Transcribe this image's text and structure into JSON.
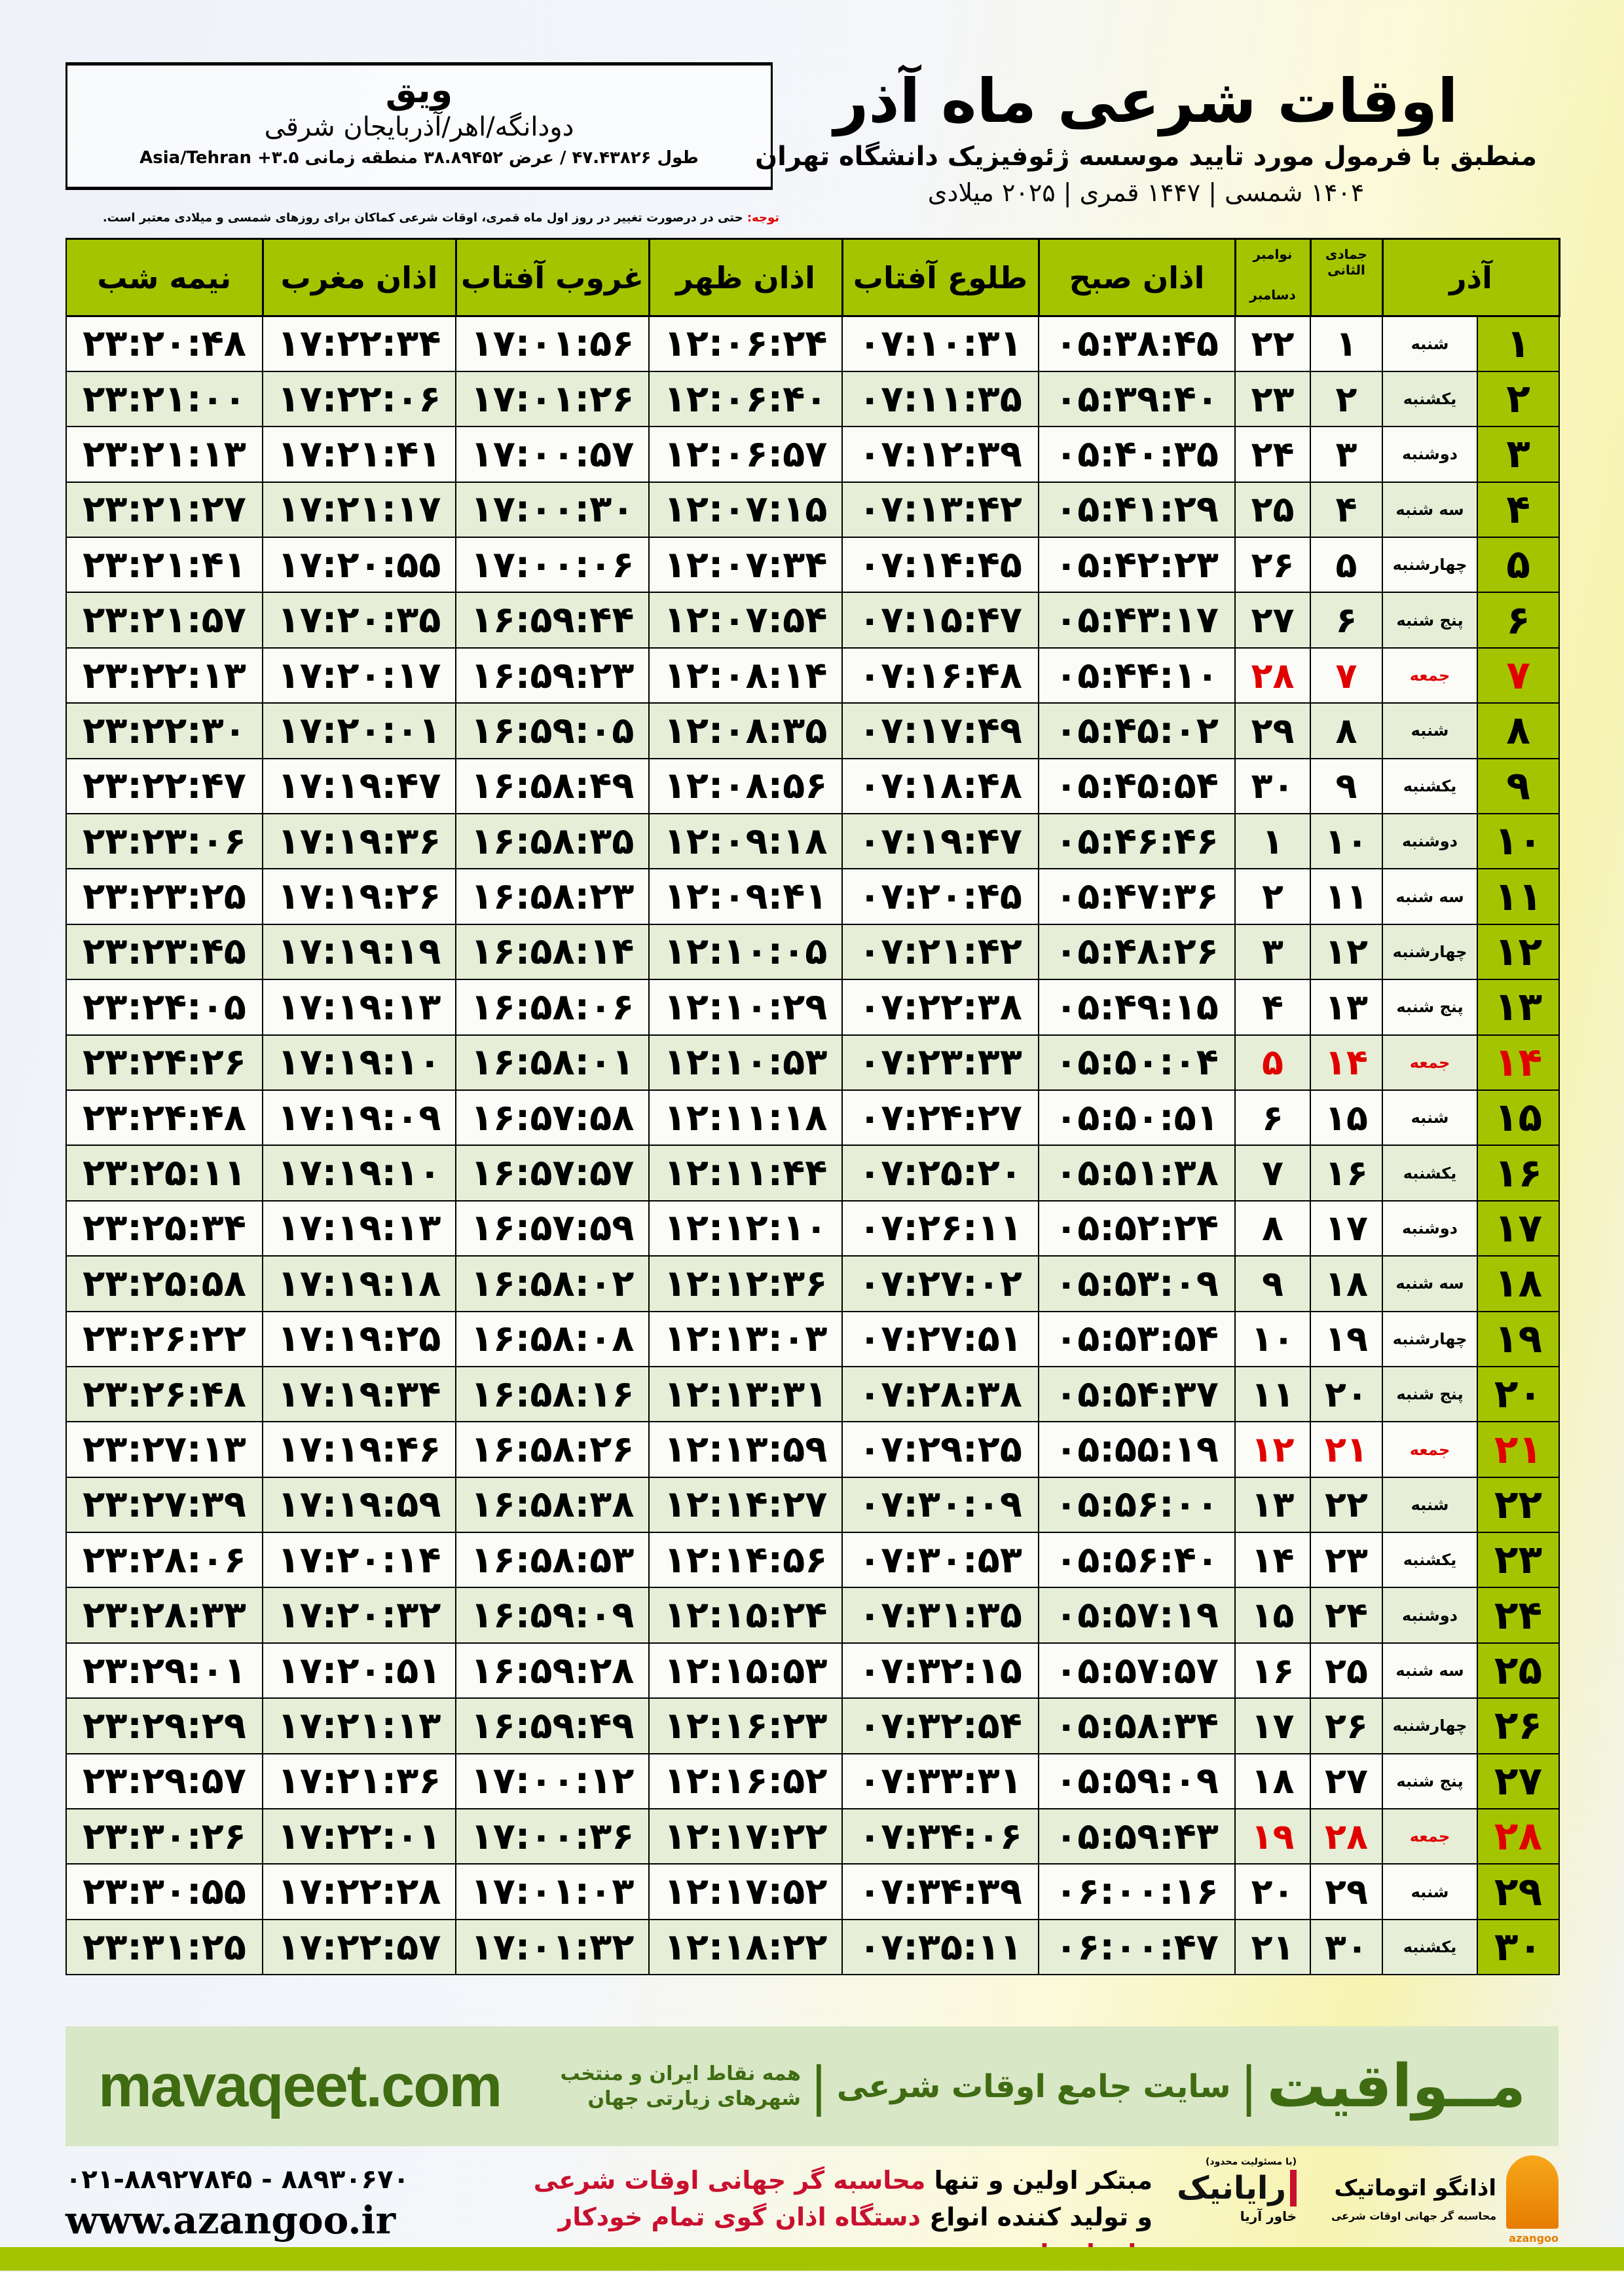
{
  "location": {
    "name": "ویق",
    "region": "دودانگه/اهر/آذربایجان شرقی",
    "coords": "طول ۴۷.۴۳۸۲۶ / عرض ۳۸.۸۹۴۵۲ منطقه زمانی ۳.۵+ Asia/Tehran"
  },
  "title": {
    "main": "اوقات شرعی ماه آذر",
    "subtitle": "منطبق با فرمول مورد تایید موسسه ژئوفیزیک دانشگاه تهران",
    "years": "۱۴۰۴ شمسی | ۱۴۴۷ قمری | ۲۰۲۵ میلادی"
  },
  "note": {
    "label": "توجه:",
    "text": " حتی در درصورت تغییر در روز اول ماه قمری، اوقات شرعی کماکان برای روزهای شمسی و میلادی معتبر است."
  },
  "colors": {
    "accent": "#a5c400",
    "friday": "#e00000",
    "alt_row": "#e6eed7",
    "promo_bg": "#d8e7c6",
    "promo_text": "#3f6b12"
  },
  "table": {
    "headers": {
      "month": "آذر",
      "hijri_month": "جمادی الثانی",
      "greg_month_1": "نوامبر",
      "greg_month_2": "دسامبر",
      "fajr": "اذان صبح",
      "sunrise": "طلوع آفتاب",
      "dhuhr": "اذان ظهر",
      "sunset": "غروب آفتاب",
      "maghrib": "اذان مغرب",
      "midnight": "نیمه شب"
    },
    "friday_rows": [
      7,
      14,
      21,
      28
    ],
    "rows": [
      [
        "۱",
        "شنبه",
        "۱",
        "۲۲",
        "۰۵:۳۸:۴۵",
        "۰۷:۱۰:۳۱",
        "۱۲:۰۶:۲۴",
        "۱۷:۰۱:۵۶",
        "۱۷:۲۲:۳۴",
        "۲۳:۲۰:۴۸"
      ],
      [
        "۲",
        "یکشنبه",
        "۲",
        "۲۳",
        "۰۵:۳۹:۴۰",
        "۰۷:۱۱:۳۵",
        "۱۲:۰۶:۴۰",
        "۱۷:۰۱:۲۶",
        "۱۷:۲۲:۰۶",
        "۲۳:۲۱:۰۰"
      ],
      [
        "۳",
        "دوشنبه",
        "۳",
        "۲۴",
        "۰۵:۴۰:۳۵",
        "۰۷:۱۲:۳۹",
        "۱۲:۰۶:۵۷",
        "۱۷:۰۰:۵۷",
        "۱۷:۲۱:۴۱",
        "۲۳:۲۱:۱۳"
      ],
      [
        "۴",
        "سه شنبه",
        "۴",
        "۲۵",
        "۰۵:۴۱:۲۹",
        "۰۷:۱۳:۴۲",
        "۱۲:۰۷:۱۵",
        "۱۷:۰۰:۳۰",
        "۱۷:۲۱:۱۷",
        "۲۳:۲۱:۲۷"
      ],
      [
        "۵",
        "چهارشنبه",
        "۵",
        "۲۶",
        "۰۵:۴۲:۲۳",
        "۰۷:۱۴:۴۵",
        "۱۲:۰۷:۳۴",
        "۱۷:۰۰:۰۶",
        "۱۷:۲۰:۵۵",
        "۲۳:۲۱:۴۱"
      ],
      [
        "۶",
        "پنج شنبه",
        "۶",
        "۲۷",
        "۰۵:۴۳:۱۷",
        "۰۷:۱۵:۴۷",
        "۱۲:۰۷:۵۴",
        "۱۶:۵۹:۴۴",
        "۱۷:۲۰:۳۵",
        "۲۳:۲۱:۵۷"
      ],
      [
        "۷",
        "جمعه",
        "۷",
        "۲۸",
        "۰۵:۴۴:۱۰",
        "۰۷:۱۶:۴۸",
        "۱۲:۰۸:۱۴",
        "۱۶:۵۹:۲۳",
        "۱۷:۲۰:۱۷",
        "۲۳:۲۲:۱۳"
      ],
      [
        "۸",
        "شنبه",
        "۸",
        "۲۹",
        "۰۵:۴۵:۰۲",
        "۰۷:۱۷:۴۹",
        "۱۲:۰۸:۳۵",
        "۱۶:۵۹:۰۵",
        "۱۷:۲۰:۰۱",
        "۲۳:۲۲:۳۰"
      ],
      [
        "۹",
        "یکشنبه",
        "۹",
        "۳۰",
        "۰۵:۴۵:۵۴",
        "۰۷:۱۸:۴۸",
        "۱۲:۰۸:۵۶",
        "۱۶:۵۸:۴۹",
        "۱۷:۱۹:۴۷",
        "۲۳:۲۲:۴۷"
      ],
      [
        "۱۰",
        "دوشنبه",
        "۱۰",
        "۱",
        "۰۵:۴۶:۴۶",
        "۰۷:۱۹:۴۷",
        "۱۲:۰۹:۱۸",
        "۱۶:۵۸:۳۵",
        "۱۷:۱۹:۳۶",
        "۲۳:۲۳:۰۶"
      ],
      [
        "۱۱",
        "سه شنبه",
        "۱۱",
        "۲",
        "۰۵:۴۷:۳۶",
        "۰۷:۲۰:۴۵",
        "۱۲:۰۹:۴۱",
        "۱۶:۵۸:۲۳",
        "۱۷:۱۹:۲۶",
        "۲۳:۲۳:۲۵"
      ],
      [
        "۱۲",
        "چهارشنبه",
        "۱۲",
        "۳",
        "۰۵:۴۸:۲۶",
        "۰۷:۲۱:۴۲",
        "۱۲:۱۰:۰۵",
        "۱۶:۵۸:۱۴",
        "۱۷:۱۹:۱۹",
        "۲۳:۲۳:۴۵"
      ],
      [
        "۱۳",
        "پنج شنبه",
        "۱۳",
        "۴",
        "۰۵:۴۹:۱۵",
        "۰۷:۲۲:۳۸",
        "۱۲:۱۰:۲۹",
        "۱۶:۵۸:۰۶",
        "۱۷:۱۹:۱۳",
        "۲۳:۲۴:۰۵"
      ],
      [
        "۱۴",
        "جمعه",
        "۱۴",
        "۵",
        "۰۵:۵۰:۰۴",
        "۰۷:۲۳:۳۳",
        "۱۲:۱۰:۵۳",
        "۱۶:۵۸:۰۱",
        "۱۷:۱۹:۱۰",
        "۲۳:۲۴:۲۶"
      ],
      [
        "۱۵",
        "شنبه",
        "۱۵",
        "۶",
        "۰۵:۵۰:۵۱",
        "۰۷:۲۴:۲۷",
        "۱۲:۱۱:۱۸",
        "۱۶:۵۷:۵۸",
        "۱۷:۱۹:۰۹",
        "۲۳:۲۴:۴۸"
      ],
      [
        "۱۶",
        "یکشنبه",
        "۱۶",
        "۷",
        "۰۵:۵۱:۳۸",
        "۰۷:۲۵:۲۰",
        "۱۲:۱۱:۴۴",
        "۱۶:۵۷:۵۷",
        "۱۷:۱۹:۱۰",
        "۲۳:۲۵:۱۱"
      ],
      [
        "۱۷",
        "دوشنبه",
        "۱۷",
        "۸",
        "۰۵:۵۲:۲۴",
        "۰۷:۲۶:۱۱",
        "۱۲:۱۲:۱۰",
        "۱۶:۵۷:۵۹",
        "۱۷:۱۹:۱۳",
        "۲۳:۲۵:۳۴"
      ],
      [
        "۱۸",
        "سه شنبه",
        "۱۸",
        "۹",
        "۰۵:۵۳:۰۹",
        "۰۷:۲۷:۰۲",
        "۱۲:۱۲:۳۶",
        "۱۶:۵۸:۰۲",
        "۱۷:۱۹:۱۸",
        "۲۳:۲۵:۵۸"
      ],
      [
        "۱۹",
        "چهارشنبه",
        "۱۹",
        "۱۰",
        "۰۵:۵۳:۵۴",
        "۰۷:۲۷:۵۱",
        "۱۲:۱۳:۰۳",
        "۱۶:۵۸:۰۸",
        "۱۷:۱۹:۲۵",
        "۲۳:۲۶:۲۲"
      ],
      [
        "۲۰",
        "پنج شنبه",
        "۲۰",
        "۱۱",
        "۰۵:۵۴:۳۷",
        "۰۷:۲۸:۳۸",
        "۱۲:۱۳:۳۱",
        "۱۶:۵۸:۱۶",
        "۱۷:۱۹:۳۴",
        "۲۳:۲۶:۴۸"
      ],
      [
        "۲۱",
        "جمعه",
        "۲۱",
        "۱۲",
        "۰۵:۵۵:۱۹",
        "۰۷:۲۹:۲۵",
        "۱۲:۱۳:۵۹",
        "۱۶:۵۸:۲۶",
        "۱۷:۱۹:۴۶",
        "۲۳:۲۷:۱۳"
      ],
      [
        "۲۲",
        "شنبه",
        "۲۲",
        "۱۳",
        "۰۵:۵۶:۰۰",
        "۰۷:۳۰:۰۹",
        "۱۲:۱۴:۲۷",
        "۱۶:۵۸:۳۸",
        "۱۷:۱۹:۵۹",
        "۲۳:۲۷:۳۹"
      ],
      [
        "۲۳",
        "یکشنبه",
        "۲۳",
        "۱۴",
        "۰۵:۵۶:۴۰",
        "۰۷:۳۰:۵۳",
        "۱۲:۱۴:۵۶",
        "۱۶:۵۸:۵۳",
        "۱۷:۲۰:۱۴",
        "۲۳:۲۸:۰۶"
      ],
      [
        "۲۴",
        "دوشنبه",
        "۲۴",
        "۱۵",
        "۰۵:۵۷:۱۹",
        "۰۷:۳۱:۳۵",
        "۱۲:۱۵:۲۴",
        "۱۶:۵۹:۰۹",
        "۱۷:۲۰:۳۲",
        "۲۳:۲۸:۳۳"
      ],
      [
        "۲۵",
        "سه شنبه",
        "۲۵",
        "۱۶",
        "۰۵:۵۷:۵۷",
        "۰۷:۳۲:۱۵",
        "۱۲:۱۵:۵۳",
        "۱۶:۵۹:۲۸",
        "۱۷:۲۰:۵۱",
        "۲۳:۲۹:۰۱"
      ],
      [
        "۲۶",
        "چهارشنبه",
        "۲۶",
        "۱۷",
        "۰۵:۵۸:۳۴",
        "۰۷:۳۲:۵۴",
        "۱۲:۱۶:۲۳",
        "۱۶:۵۹:۴۹",
        "۱۷:۲۱:۱۳",
        "۲۳:۲۹:۲۹"
      ],
      [
        "۲۷",
        "پنج شنبه",
        "۲۷",
        "۱۸",
        "۰۵:۵۹:۰۹",
        "۰۷:۳۳:۳۱",
        "۱۲:۱۶:۵۲",
        "۱۷:۰۰:۱۲",
        "۱۷:۲۱:۳۶",
        "۲۳:۲۹:۵۷"
      ],
      [
        "۲۸",
        "جمعه",
        "۲۸",
        "۱۹",
        "۰۵:۵۹:۴۳",
        "۰۷:۳۴:۰۶",
        "۱۲:۱۷:۲۲",
        "۱۷:۰۰:۳۶",
        "۱۷:۲۲:۰۱",
        "۲۳:۳۰:۲۶"
      ],
      [
        "۲۹",
        "شنبه",
        "۲۹",
        "۲۰",
        "۰۶:۰۰:۱۶",
        "۰۷:۳۴:۳۹",
        "۱۲:۱۷:۵۲",
        "۱۷:۰۱:۰۳",
        "۱۷:۲۲:۲۸",
        "۲۳:۳۰:۵۵"
      ],
      [
        "۳۰",
        "یکشنبه",
        "۳۰",
        "۲۱",
        "۰۶:۰۰:۴۷",
        "۰۷:۳۵:۱۱",
        "۱۲:۱۸:۲۲",
        "۱۷:۰۱:۳۲",
        "۱۷:۲۲:۵۷",
        "۲۳:۳۱:۲۵"
      ]
    ]
  },
  "promo": {
    "brand": "مــواقیت",
    "separator": "|",
    "tagline": "سایت جامع اوقات شرعی",
    "subtagline": "همه نقاط ایران و منتخب شهرهای زیارتی جهان",
    "url": "mavaqeet.com"
  },
  "footer": {
    "phone": "۰۲۱-۸۸۹۲۷۸۴۵ - ۸۸۹۳۰۶۷۰",
    "website": "www.azangoo.ir",
    "slogan_line1_a": "مبتکر اولین و تنها ",
    "slogan_line1_b": "محاسبه گر جهانی اوقات شرعی",
    "slogan_line2_a": "و تولید کننده انواع ",
    "slogan_line2_b": "دستگاه اذان گوی تمام خودکار ماهواره ای",
    "logo_rayanik": "رایانیک",
    "logo_rayanik_sub": "خاور آریا",
    "logo_rayanik_tiny": "(با مسئولیت محدود)",
    "logo_azangoo": "اذانگو اتوماتیک",
    "logo_azangoo_sub": "محاسبه گر جهانی اوقات شرعی",
    "logo_azangoo_en": "azangoo"
  }
}
